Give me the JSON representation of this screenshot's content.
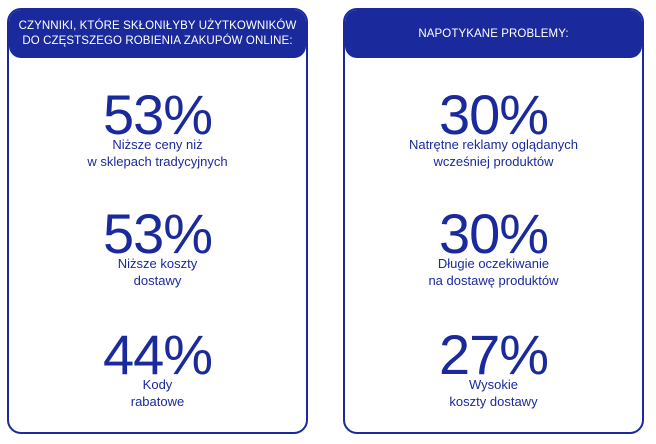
{
  "left_panel": {
    "header": "CZYNNIKI, KTÓRE SKŁONIŁYBY UŻYTKOWNIKÓW\nDO CZĘSTSZEGO ROBIENIA ZAKUPÓW ONLINE:",
    "stats": [
      {
        "value": "53%",
        "label": "Niższe ceny niż\nw sklepach tradycyjnych"
      },
      {
        "value": "53%",
        "label": "Niższe koszty\ndostawy"
      },
      {
        "value": "44%",
        "label": "Kody\nrabatowe"
      }
    ]
  },
  "right_panel": {
    "header": "NAPOTYKANE PROBLEMY:",
    "stats": [
      {
        "value": "30%",
        "label": "Natrętne reklamy oglądanych\nwcześniej produktów"
      },
      {
        "value": "30%",
        "label": "Długie oczekiwanie\nna dostawę produktów"
      },
      {
        "value": "27%",
        "label": "Wysokie\nkoszty dostawy"
      }
    ]
  },
  "colors": {
    "accent": "#1a2a9c",
    "background": "#ffffff",
    "header_text": "#ffffff"
  }
}
